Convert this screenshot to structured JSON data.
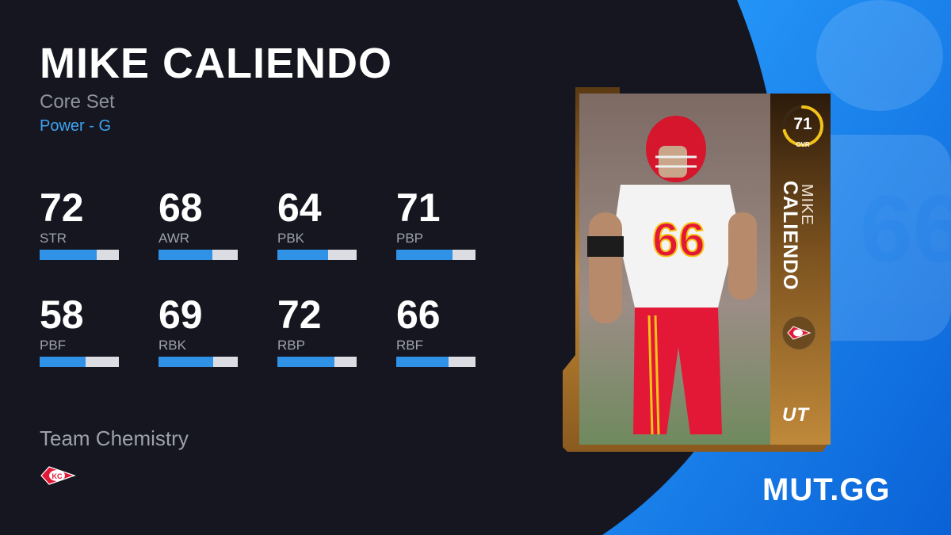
{
  "player": {
    "name": "MIKE CALIENDO",
    "first_name": "MIKE",
    "last_name": "CALIENDO",
    "set": "Core Set",
    "archetype": "Power - G",
    "ovr": "71",
    "ovr_label": "OVR",
    "program": "UT"
  },
  "stats": [
    {
      "value": "72",
      "label": "STR",
      "level": 0.72
    },
    {
      "value": "68",
      "label": "AWR",
      "level": 0.68
    },
    {
      "value": "64",
      "label": "PBK",
      "level": 0.64
    },
    {
      "value": "71",
      "label": "PBP",
      "level": 0.71
    },
    {
      "value": "58",
      "label": "PBF",
      "level": 0.58
    },
    {
      "value": "69",
      "label": "RBK",
      "level": 0.69
    },
    {
      "value": "72",
      "label": "RBP",
      "level": 0.72
    },
    {
      "value": "66",
      "label": "RBF",
      "level": 0.66
    }
  ],
  "chemistry": {
    "title": "Team Chemistry",
    "team": "KC"
  },
  "brand": "MUT.GG",
  "colors": {
    "background": "#15161f",
    "accent_blue": "#3ea3f2",
    "bar_fill": "#2f92e6",
    "bar_track": "#dcdde3",
    "card_gold": "#b27a2e",
    "ovr_ring": "#f2c21b",
    "team_red": "#e31837"
  },
  "icons": {
    "team_logo": "chiefs-arrowhead-icon"
  }
}
